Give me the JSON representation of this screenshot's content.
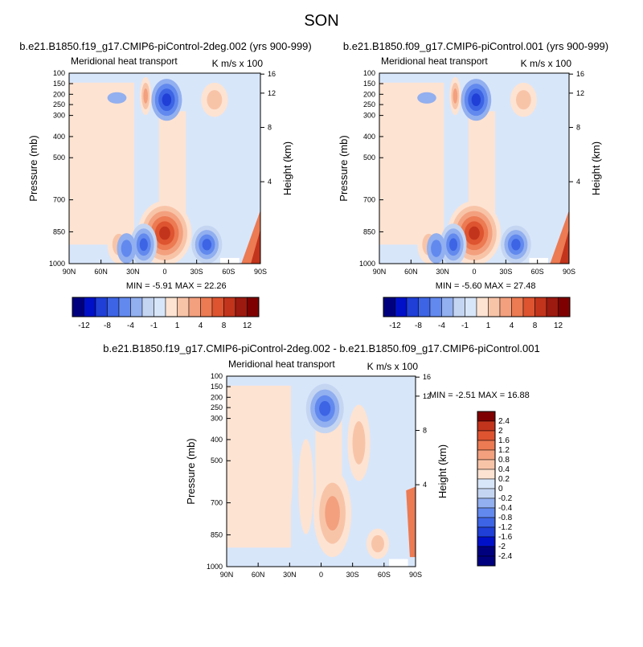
{
  "figure_title": "SON",
  "colors": {
    "neg12": "#00007f",
    "neg10": "#0010c8",
    "neg8": "#1f3fd6",
    "neg6": "#3d64e4",
    "neg4": "#6289ee",
    "neg2": "#92afef",
    "neg1": "#c4d5f2",
    "zero": "#d8e6fa",
    "pos1": "#fde3d2",
    "pos2": "#f8c4a8",
    "pos4": "#f3a07e",
    "pos6": "#ec7a52",
    "pos8": "#de5430",
    "pos10": "#c2341c",
    "pos12": "#9c1a10",
    "pos14": "#7f0000"
  },
  "chart_data": [
    {
      "type": "heatmap",
      "title": "b.e21.B1850.f19_g17.CMIP6-piControl-2deg.002 (yrs 900-999)",
      "inner_title": "Meridional heat transport",
      "units": "K m/s x 100",
      "ylabel": "Pressure (mb)",
      "ylabel_right": "Height (km)",
      "x_ticks": [
        "90N",
        "60N",
        "30N",
        "0",
        "30S",
        "60S",
        "90S"
      ],
      "y_ticks": [
        "100",
        "150",
        "200",
        "250",
        "300",
        "400",
        "500",
        "700",
        "850",
        "1000"
      ],
      "y_right_ticks": [
        "16",
        "12",
        "8",
        "4"
      ],
      "min_max": "MIN =  -5.91   MAX =  22.26",
      "colorbar_labels": [
        "-12",
        "-8",
        "-4",
        "-1",
        "1",
        "4",
        "8",
        "12"
      ]
    },
    {
      "type": "heatmap",
      "title": "b.e21.B1850.f09_g17.CMIP6-piControl.001 (yrs 900-999)",
      "inner_title": "Meridional heat transport",
      "units": "K m/s x 100",
      "ylabel": "Pressure (mb)",
      "ylabel_right": "Height (km)",
      "x_ticks": [
        "90N",
        "60N",
        "30N",
        "0",
        "30S",
        "60S",
        "90S"
      ],
      "y_ticks": [
        "100",
        "150",
        "200",
        "250",
        "300",
        "400",
        "500",
        "700",
        "850",
        "1000"
      ],
      "y_right_ticks": [
        "16",
        "12",
        "8",
        "4"
      ],
      "min_max": "MIN =  -5.60   MAX =  27.48",
      "colorbar_labels": [
        "-12",
        "-8",
        "-4",
        "-1",
        "1",
        "4",
        "8",
        "12"
      ]
    },
    {
      "type": "heatmap",
      "title": "b.e21.B1850.f19_g17.CMIP6-piControl-2deg.002 - b.e21.B1850.f09_g17.CMIP6-piControl.001",
      "inner_title": "Meridional heat transport",
      "units": "K m/s x 100",
      "ylabel": "Pressure (mb)",
      "ylabel_right": "Height (km)",
      "x_ticks": [
        "90N",
        "60N",
        "30N",
        "0",
        "30S",
        "60S",
        "90S"
      ],
      "y_ticks": [
        "100",
        "150",
        "200",
        "250",
        "300",
        "400",
        "500",
        "700",
        "850",
        "1000"
      ],
      "y_right_ticks": [
        "16",
        "12",
        "8",
        "4"
      ],
      "min_max": "MIN =  -2.51   MAX =  16.88",
      "colorbar_labels": [
        "2.4",
        "2",
        "1.6",
        "1.2",
        "0.8",
        "0.4",
        "0.2",
        "0",
        "-0.2",
        "-0.4",
        "-0.8",
        "-1.2",
        "-1.6",
        "-2",
        "-2.4"
      ]
    }
  ]
}
